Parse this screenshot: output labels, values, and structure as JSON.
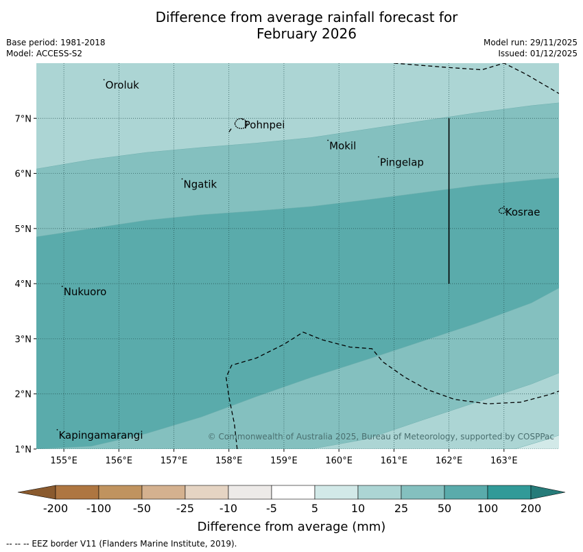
{
  "title": {
    "line1": "Difference from average rainfall forecast for",
    "line2": "February 2026"
  },
  "meta": {
    "base_period": "Base period: 1981-2018",
    "model": "Model: ACCESS-S2",
    "model_run": "Model run: 29/11/2025",
    "issued": "Issued: 01/12/2025"
  },
  "map": {
    "lon_range": [
      154.5,
      164
    ],
    "lat_range": [
      1,
      8
    ],
    "lon_ticks": [
      {
        "value": 155,
        "label": "155°E"
      },
      {
        "value": 156,
        "label": "156°E"
      },
      {
        "value": 157,
        "label": "157°E"
      },
      {
        "value": 158,
        "label": "158°E"
      },
      {
        "value": 159,
        "label": "159°E"
      },
      {
        "value": 160,
        "label": "160°E"
      },
      {
        "value": 161,
        "label": "161°E"
      },
      {
        "value": 162,
        "label": "162°E"
      },
      {
        "value": 163,
        "label": "163°E"
      }
    ],
    "lat_ticks": [
      {
        "value": 1,
        "label": "1°N"
      },
      {
        "value": 2,
        "label": "2°N"
      },
      {
        "value": 3,
        "label": "3°N"
      },
      {
        "value": 4,
        "label": "4°N"
      },
      {
        "value": 5,
        "label": "5°N"
      },
      {
        "value": 6,
        "label": "6°N"
      },
      {
        "value": 7,
        "label": "7°N"
      }
    ],
    "places": [
      {
        "name": "Oroluk",
        "lon": 155.73,
        "lat": 7.6
      },
      {
        "name": "Pohnpei",
        "lon": 158.25,
        "lat": 6.88
      },
      {
        "name": "Mokil",
        "lon": 159.8,
        "lat": 6.5
      },
      {
        "name": "Pingelap",
        "lon": 160.72,
        "lat": 6.2
      },
      {
        "name": "Ngatik",
        "lon": 157.15,
        "lat": 5.8
      },
      {
        "name": "Kosrae",
        "lon": 163.0,
        "lat": 5.3
      },
      {
        "name": "Nukuoro",
        "lon": 154.97,
        "lat": 3.85
      },
      {
        "name": "Kapingamarangi",
        "lon": 154.88,
        "lat": 1.25
      }
    ],
    "zones": [
      {
        "range": "10 to 25",
        "color": "#acd5d4",
        "boundary": [
          [
            154.5,
            6.08
          ],
          [
            155.5,
            6.25
          ],
          [
            156.5,
            6.38
          ],
          [
            157.5,
            6.47
          ],
          [
            158.5,
            6.55
          ],
          [
            159.5,
            6.65
          ],
          [
            160.5,
            6.8
          ],
          [
            161.5,
            6.95
          ],
          [
            162.5,
            7.1
          ],
          [
            163.5,
            7.23
          ],
          [
            164,
            7.28
          ]
        ]
      },
      {
        "range": "25 to 50",
        "color": "#84c0bf",
        "boundary": [
          [
            154.5,
            4.85
          ],
          [
            155.5,
            5.0
          ],
          [
            156.5,
            5.15
          ],
          [
            157.5,
            5.25
          ],
          [
            158.5,
            5.32
          ],
          [
            159.5,
            5.4
          ],
          [
            160.5,
            5.52
          ],
          [
            161.5,
            5.65
          ],
          [
            162.5,
            5.78
          ],
          [
            163.5,
            5.88
          ],
          [
            164,
            5.92
          ]
        ]
      },
      {
        "range": "50 to 100",
        "color": "#5aabab",
        "boundary": [
          [
            154.5,
            1.0
          ],
          [
            155.5,
            1.05
          ],
          [
            156.5,
            1.28
          ],
          [
            157.5,
            1.58
          ],
          [
            158.5,
            1.95
          ],
          [
            159.5,
            2.3
          ],
          [
            160.5,
            2.62
          ],
          [
            161.5,
            2.95
          ],
          [
            162.5,
            3.28
          ],
          [
            163.5,
            3.65
          ],
          [
            164,
            3.92
          ]
        ]
      },
      {
        "range": "25 to 50",
        "color": "#84c0bf",
        "boundary": [
          [
            159.5,
            1.0
          ],
          [
            160.5,
            1.18
          ],
          [
            161.5,
            1.52
          ],
          [
            162.5,
            1.85
          ],
          [
            163.5,
            2.18
          ],
          [
            164,
            2.38
          ]
        ]
      },
      {
        "range": "10 to 25",
        "color": "#acd5d4",
        "boundary": [
          [
            163.2,
            1.0
          ],
          [
            163.8,
            1.18
          ],
          [
            164,
            1.25
          ]
        ]
      }
    ],
    "eez_lines": [
      [
        [
          161.0,
          8.0
        ],
        [
          162.0,
          7.92
        ],
        [
          162.6,
          7.88
        ],
        [
          163.0,
          8.0
        ],
        [
          163.4,
          7.8
        ],
        [
          164,
          7.45
        ]
      ],
      [
        [
          158.15,
          1.0
        ],
        [
          158.1,
          1.45
        ],
        [
          158.0,
          1.95
        ],
        [
          157.95,
          2.3
        ],
        [
          158.05,
          2.52
        ],
        [
          158.5,
          2.65
        ],
        [
          159.0,
          2.9
        ],
        [
          159.35,
          3.12
        ],
        [
          159.7,
          2.98
        ],
        [
          160.2,
          2.85
        ],
        [
          160.6,
          2.82
        ],
        [
          160.8,
          2.58
        ],
        [
          161.2,
          2.3
        ],
        [
          161.6,
          2.08
        ],
        [
          162.1,
          1.9
        ],
        [
          162.7,
          1.82
        ],
        [
          163.3,
          1.85
        ],
        [
          163.8,
          1.98
        ],
        [
          164,
          2.05
        ]
      ],
      [
        [
          158.0,
          6.75
        ],
        [
          158.05,
          6.82
        ]
      ]
    ],
    "island_shapes": [
      {
        "name": "Pohnpei",
        "lon": 158.22,
        "lat": 6.88,
        "scale": 1.0
      },
      {
        "name": "Kosrae",
        "lon": 162.97,
        "lat": 5.31,
        "scale": 0.55
      }
    ],
    "vertical_line": {
      "lon": 162.0,
      "lat_from": 4.0,
      "lat_to": 7.0
    },
    "copyright": "© Commonwealth of Australia 2025, Bureau of Meteorology, supported by COSPPac"
  },
  "colorbar": {
    "label": "Difference from average (mm)",
    "ticks": [
      "-200",
      "-100",
      "-50",
      "-25",
      "-10",
      "-5",
      "5",
      "10",
      "25",
      "50",
      "100",
      "200"
    ],
    "colors": [
      "#ae7641",
      "#c0935f",
      "#d4b18f",
      "#e5d4c3",
      "#edeae8",
      "#ffffff",
      "#d2e9e8",
      "#acd5d4",
      "#84c0bf",
      "#5aabab",
      "#319a98"
    ],
    "extend_low_color": "#8a5a2e",
    "extend_high_color": "#267b79"
  },
  "footnote": "--  --  -- EEZ border V11 (Flanders Marine Institute, 2019)."
}
